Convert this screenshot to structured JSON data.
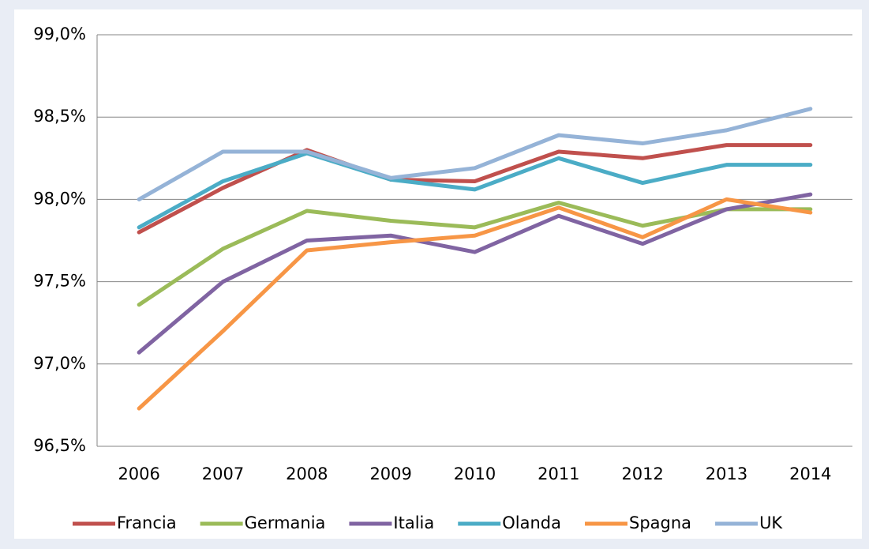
{
  "chart_data": {
    "type": "line",
    "categories": [
      "2006",
      "2007",
      "2008",
      "2009",
      "2010",
      "2011",
      "2012",
      "2013",
      "2014"
    ],
    "series": [
      {
        "name": "Francia",
        "color": "#c0504d",
        "values": [
          97.8,
          98.07,
          98.3,
          98.12,
          98.11,
          98.29,
          98.25,
          98.33,
          98.33
        ]
      },
      {
        "name": "Germania",
        "color": "#9bbb59",
        "values": [
          97.36,
          97.7,
          97.93,
          97.87,
          97.83,
          97.98,
          97.84,
          97.94,
          97.94
        ]
      },
      {
        "name": "Italia",
        "color": "#8064a2",
        "values": [
          97.07,
          97.5,
          97.75,
          97.78,
          97.68,
          97.9,
          97.73,
          97.94,
          98.03
        ]
      },
      {
        "name": "Olanda",
        "color": "#4bacc6",
        "values": [
          97.83,
          98.11,
          98.28,
          98.12,
          98.06,
          98.25,
          98.1,
          98.21,
          98.21
        ]
      },
      {
        "name": "Spagna",
        "color": "#f79646",
        "values": [
          96.73,
          97.2,
          97.69,
          97.74,
          97.78,
          97.95,
          97.77,
          98.0,
          97.92
        ]
      },
      {
        "name": "UK",
        "color": "#95b3d7",
        "values": [
          98.0,
          98.29,
          98.29,
          98.13,
          98.19,
          98.39,
          98.34,
          98.42,
          98.55
        ]
      }
    ],
    "ylim": [
      96.5,
      99
    ],
    "yticks": [
      {
        "value": 96.5,
        "label": "96,5%"
      },
      {
        "value": 97,
        "label": "97,0%"
      },
      {
        "value": 97.5,
        "label": "97,5%"
      },
      {
        "value": 98,
        "label": "98,0%"
      },
      {
        "value": 98.5,
        "label": "98,5%"
      },
      {
        "value": 99,
        "label": "99,0%"
      }
    ],
    "grid": true,
    "legend": "bottom"
  }
}
